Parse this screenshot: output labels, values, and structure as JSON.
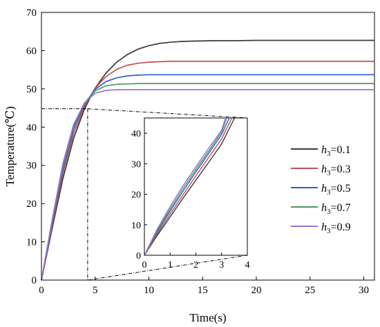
{
  "chart_data": {
    "type": "line",
    "xlabel": "Time(s)",
    "ylabel": "Temperature(℃)",
    "xlim": [
      0,
      31
    ],
    "ylim": [
      0,
      70
    ],
    "xticks": [
      0,
      5,
      10,
      15,
      20,
      25,
      30
    ],
    "yticks": [
      0,
      10,
      20,
      30,
      40,
      50,
      60,
      70
    ],
    "grid": false,
    "legend_position": "right",
    "legend_prefix": "h",
    "legend_subscript": "3",
    "series": [
      {
        "name": "h3=0.1",
        "label_value": "=0.1",
        "color": "#3a3a3a",
        "x": [
          0,
          1,
          2,
          3,
          4,
          5,
          6,
          7,
          8,
          9,
          10,
          11,
          12,
          13,
          14,
          16,
          18,
          20,
          25,
          31
        ],
        "y": [
          0,
          13.5,
          26.6,
          37.1,
          44.7,
          50.2,
          54.1,
          57.0,
          59.0,
          60.4,
          61.3,
          61.9,
          62.2,
          62.4,
          62.5,
          62.6,
          62.6,
          62.7,
          62.7,
          62.7
        ]
      },
      {
        "name": "h3=0.3",
        "label_value": "=0.3",
        "color": "#c0504d",
        "x": [
          0,
          1,
          2,
          3,
          4,
          5,
          6,
          7,
          8,
          9,
          10,
          11,
          12,
          13,
          14,
          16,
          18,
          20,
          25,
          31
        ],
        "y": [
          0,
          14.3,
          28.0,
          38.4,
          45.4,
          50.2,
          53.2,
          55.1,
          56.2,
          56.7,
          57.0,
          57.1,
          57.2,
          57.2,
          57.2,
          57.2,
          57.2,
          57.2,
          57.2,
          57.2
        ]
      },
      {
        "name": "h3=0.5",
        "label_value": "=0.5",
        "color": "#2e5fd1",
        "x": [
          0,
          1,
          2,
          3,
          4,
          5,
          6,
          7,
          8,
          9,
          10,
          11,
          12,
          13,
          14,
          16,
          18,
          20,
          25,
          31
        ],
        "y": [
          0,
          15.0,
          29.2,
          39.5,
          46.0,
          49.9,
          51.9,
          52.9,
          53.4,
          53.6,
          53.7,
          53.7,
          53.7,
          53.7,
          53.7,
          53.7,
          53.7,
          53.7,
          53.7,
          53.7
        ]
      },
      {
        "name": "h3=0.7",
        "label_value": "=0.7",
        "color": "#4a9a5a",
        "x": [
          0,
          1,
          2,
          3,
          4,
          5,
          6,
          7,
          8,
          9,
          10,
          11,
          12,
          13,
          14,
          16,
          18,
          20,
          25,
          31
        ],
        "y": [
          0,
          15.4,
          29.9,
          40.2,
          46.3,
          49.5,
          50.8,
          51.2,
          51.3,
          51.4,
          51.4,
          51.4,
          51.4,
          51.4,
          51.4,
          51.4,
          51.4,
          51.4,
          51.4,
          51.4
        ]
      },
      {
        "name": "h3=0.9",
        "label_value": "=0.9",
        "color": "#9b6fd1",
        "x": [
          0,
          1,
          2,
          3,
          4,
          5,
          6,
          7,
          8,
          9,
          10,
          11,
          12,
          13,
          14,
          16,
          18,
          20,
          25,
          31
        ],
        "y": [
          0,
          15.8,
          30.5,
          40.7,
          46.3,
          48.9,
          49.6,
          49.8,
          49.8,
          49.8,
          49.8,
          49.8,
          49.8,
          49.8,
          49.8,
          49.8,
          49.8,
          49.8,
          49.8,
          49.8
        ]
      }
    ],
    "inset": {
      "xlim": [
        0,
        4
      ],
      "ylim": [
        0,
        45
      ],
      "xticks": [
        0,
        1,
        2,
        3,
        4
      ],
      "yticks": [
        0,
        10,
        20,
        30,
        40
      ],
      "zoom_region": {
        "x": [
          0,
          4.3
        ],
        "y": [
          0,
          44.8
        ]
      },
      "series": [
        {
          "name": "h3=0.1",
          "x": [
            0,
            0.5,
            1,
            1.5,
            2,
            2.5,
            3,
            3.5
          ],
          "y": [
            0,
            6.5,
            12.6,
            18.7,
            24.6,
            30.5,
            36.5,
            45.0
          ]
        },
        {
          "name": "h3=0.3",
          "x": [
            0,
            0.5,
            1,
            1.5,
            2,
            2.5,
            3,
            3.4
          ],
          "y": [
            0,
            7.0,
            13.5,
            19.8,
            26.0,
            32.1,
            38.2,
            45.0
          ]
        },
        {
          "name": "h3=0.5",
          "x": [
            0,
            0.5,
            1,
            1.5,
            2,
            2.5,
            3,
            3.3
          ],
          "y": [
            0,
            7.6,
            14.5,
            21.0,
            27.3,
            33.4,
            39.6,
            45.0
          ]
        },
        {
          "name": "h3=0.7",
          "x": [
            0,
            0.5,
            1,
            1.5,
            2,
            2.5,
            3,
            3.2
          ],
          "y": [
            0,
            8.1,
            15.2,
            21.9,
            28.1,
            34.2,
            40.4,
            45.0
          ]
        },
        {
          "name": "h3=0.9",
          "x": [
            0,
            0.5,
            1,
            1.5,
            2,
            2.5,
            3,
            3.15
          ],
          "y": [
            0,
            8.6,
            16.0,
            22.8,
            29.0,
            35.1,
            41.0,
            45.0
          ]
        }
      ]
    }
  }
}
